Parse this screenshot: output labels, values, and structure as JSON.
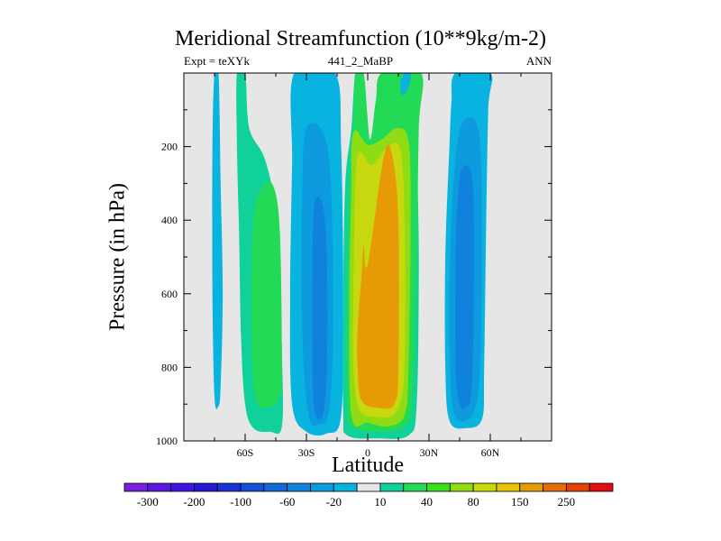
{
  "title": "Meridional Streamfunction (10**9kg/m-2)",
  "left_string": "Expt = teXYk",
  "center_string": "441_2_MaBP",
  "right_string": "ANN",
  "chart_data": {
    "type": "heatmap",
    "subtype": "filled-contour",
    "xlabel": "Latitude",
    "ylabel": "Pressure (in hPa)",
    "xlim": [
      -90,
      90
    ],
    "ylim": [
      1000,
      0
    ],
    "y_reversed": true,
    "x_ticks": [
      {
        "value": -60,
        "label": "60S"
      },
      {
        "value": -30,
        "label": "30S"
      },
      {
        "value": 0,
        "label": "0"
      },
      {
        "value": 30,
        "label": "30N"
      },
      {
        "value": 60,
        "label": "60N"
      }
    ],
    "y_ticks": [
      {
        "value": 200,
        "label": "200"
      },
      {
        "value": 400,
        "label": "400"
      },
      {
        "value": 600,
        "label": "600"
      },
      {
        "value": 800,
        "label": "800"
      },
      {
        "value": 1000,
        "label": "1000"
      }
    ],
    "background_color": "#e6e6e6",
    "contour_levels": [
      -300,
      -250,
      -200,
      -150,
      -100,
      -80,
      -60,
      -40,
      -20,
      -10,
      10,
      20,
      40,
      60,
      80,
      100,
      150,
      200,
      250,
      300
    ],
    "colorbar": {
      "colors": [
        "#7a1fdf",
        "#5c19e0",
        "#3d16e1",
        "#2618d3",
        "#1a33d4",
        "#1650d6",
        "#1369d9",
        "#0f82dc",
        "#0e9ade",
        "#09b3df",
        "#e6e6e6",
        "#11d19b",
        "#22da55",
        "#37e01b",
        "#8fdc14",
        "#c8d80e",
        "#e8c408",
        "#e59a06",
        "#e46d05",
        "#e24304",
        "#e00f0f"
      ],
      "labels": [
        {
          "after_box": 1,
          "text": "-300"
        },
        {
          "after_box": 3,
          "text": "-200"
        },
        {
          "after_box": 5,
          "text": "-100"
        },
        {
          "after_box": 7,
          "text": "-60"
        },
        {
          "after_box": 9,
          "text": "-20"
        },
        {
          "after_box": 11,
          "text": "10"
        },
        {
          "after_box": 13,
          "text": "40"
        },
        {
          "after_box": 15,
          "text": "80"
        },
        {
          "after_box": 17,
          "text": "150"
        },
        {
          "after_box": 19,
          "text": "250"
        }
      ]
    },
    "regions": [
      {
        "name": "cell-70s",
        "level": -10,
        "color": "#09b3df",
        "polygon": [
          [
            -75,
            0
          ],
          [
            -73,
            0
          ],
          [
            -72,
            300
          ],
          [
            -71,
            600
          ],
          [
            -72,
            850
          ],
          [
            -73,
            905
          ],
          [
            -75,
            880
          ],
          [
            -76,
            600
          ],
          [
            -76,
            200
          ]
        ]
      },
      {
        "name": "cell-55s",
        "level": 10,
        "color": "#11d19b",
        "polygon": [
          [
            -64,
            0
          ],
          [
            -60,
            0
          ],
          [
            -58,
            150
          ],
          [
            -50,
            240
          ],
          [
            -44,
            420
          ],
          [
            -42,
            760
          ],
          [
            -42,
            960
          ],
          [
            -48,
            975
          ],
          [
            -56,
            965
          ],
          [
            -60,
            900
          ],
          [
            -62,
            720
          ],
          [
            -63,
            430
          ],
          [
            -64,
            200
          ]
        ]
      },
      {
        "name": "cell-55s-core",
        "level": 20,
        "color": "#22da55",
        "polygon": [
          [
            -51,
            305
          ],
          [
            -46,
            310
          ],
          [
            -43,
            430
          ],
          [
            -42,
            760
          ],
          [
            -43,
            880
          ],
          [
            -50,
            910
          ],
          [
            -55,
            880
          ],
          [
            -57,
            700
          ],
          [
            -56,
            400
          ]
        ]
      },
      {
        "name": "cell-30s",
        "level": -10,
        "color": "#09b3df",
        "polygon": [
          [
            -36,
            0
          ],
          [
            -16,
            0
          ],
          [
            -13,
            200
          ],
          [
            -12,
            600
          ],
          [
            -13,
            930
          ],
          [
            -20,
            980
          ],
          [
            -30,
            975
          ],
          [
            -37,
            900
          ],
          [
            -38,
            600
          ],
          [
            -37,
            250
          ]
        ]
      },
      {
        "name": "cell-30s-l2",
        "level": -20,
        "color": "#0e9ade",
        "polygon": [
          [
            -30,
            150
          ],
          [
            -22,
            160
          ],
          [
            -18,
            300
          ],
          [
            -17,
            700
          ],
          [
            -19,
            920
          ],
          [
            -24,
            955
          ],
          [
            -29,
            930
          ],
          [
            -32,
            700
          ],
          [
            -32,
            300
          ]
        ]
      },
      {
        "name": "cell-30s-l3",
        "level": -40,
        "color": "#0f82dc",
        "polygon": [
          [
            -26,
            350
          ],
          [
            -22,
            360
          ],
          [
            -20,
            500
          ],
          [
            -20,
            800
          ],
          [
            -22,
            930
          ],
          [
            -26,
            920
          ],
          [
            -27,
            800
          ],
          [
            -27,
            500
          ]
        ]
      },
      {
        "name": "cell-eq",
        "level": 10,
        "color": "#11d19b",
        "polygon": [
          [
            -6,
            0
          ],
          [
            -2,
            0
          ],
          [
            1,
            180
          ],
          [
            4,
            75
          ],
          [
            7,
            0
          ],
          [
            26,
            0
          ],
          [
            24,
            120
          ],
          [
            25,
            500
          ],
          [
            24,
            900
          ],
          [
            20,
            985
          ],
          [
            5,
            993
          ],
          [
            -10,
            985
          ],
          [
            -12,
            920
          ],
          [
            -12,
            600
          ],
          [
            -11,
            300
          ],
          [
            -8,
            150
          ]
        ]
      },
      {
        "name": "cell-eq-l2",
        "level": 20,
        "color": "#22da55",
        "polygon": [
          [
            -6,
            0
          ],
          [
            -2,
            0
          ],
          [
            1,
            180
          ],
          [
            4,
            75
          ],
          [
            7,
            0
          ],
          [
            26,
            0
          ],
          [
            25,
            150
          ],
          [
            24,
            500
          ],
          [
            22,
            880
          ],
          [
            18,
            960
          ],
          [
            5,
            975
          ],
          [
            -8,
            960
          ],
          [
            -10,
            900
          ],
          [
            -10,
            600
          ],
          [
            -9,
            300
          ],
          [
            -7,
            150
          ]
        ]
      },
      {
        "name": "cell-eq-l3",
        "level": 40,
        "color": "#8fdc14",
        "polygon": [
          [
            -6,
            155
          ],
          [
            0,
            195
          ],
          [
            7,
            180
          ],
          [
            14,
            150
          ],
          [
            20,
            185
          ],
          [
            21,
            400
          ],
          [
            20,
            800
          ],
          [
            18,
            930
          ],
          [
            10,
            960
          ],
          [
            0,
            950
          ],
          [
            -8,
            930
          ],
          [
            -9,
            600
          ],
          [
            -8,
            300
          ],
          [
            -8,
            200
          ]
        ]
      },
      {
        "name": "cell-eq-l4",
        "level": 60,
        "color": "#c8d80e",
        "polygon": [
          [
            -4,
            215
          ],
          [
            2,
            250
          ],
          [
            10,
            200
          ],
          [
            16,
            210
          ],
          [
            18,
            400
          ],
          [
            18,
            800
          ],
          [
            14,
            920
          ],
          [
            5,
            935
          ],
          [
            -4,
            915
          ],
          [
            -7,
            800
          ],
          [
            -7,
            600
          ],
          [
            -6,
            300
          ]
        ]
      },
      {
        "name": "cell-eq-l5",
        "level": 80,
        "color": "#e59a06",
        "polygon": [
          [
            -2,
            470
          ],
          [
            0,
            520
          ],
          [
            8,
            225
          ],
          [
            12,
            225
          ],
          [
            15,
            400
          ],
          [
            15,
            800
          ],
          [
            13,
            900
          ],
          [
            5,
            910
          ],
          [
            -3,
            890
          ],
          [
            -5,
            800
          ],
          [
            -5,
            700
          ],
          [
            -3,
            550
          ]
        ]
      },
      {
        "name": "cell-45n",
        "level": -10,
        "color": "#09b3df",
        "polygon": [
          [
            43,
            0
          ],
          [
            60,
            0
          ],
          [
            59,
            100
          ],
          [
            58,
            400
          ],
          [
            57,
            800
          ],
          [
            56,
            940
          ],
          [
            48,
            965
          ],
          [
            40,
            945
          ],
          [
            38,
            800
          ],
          [
            38,
            500
          ],
          [
            40,
            200
          ],
          [
            41,
            80
          ]
        ]
      },
      {
        "name": "cell-45n-l2",
        "level": -20,
        "color": "#0e9ade",
        "polygon": [
          [
            46,
            140
          ],
          [
            54,
            150
          ],
          [
            56,
            400
          ],
          [
            55,
            800
          ],
          [
            52,
            920
          ],
          [
            45,
            945
          ],
          [
            41,
            880
          ],
          [
            40,
            600
          ],
          [
            42,
            300
          ]
        ]
      },
      {
        "name": "cell-45n-l3",
        "level": -40,
        "color": "#0f82dc",
        "polygon": [
          [
            46,
            260
          ],
          [
            51,
            280
          ],
          [
            52,
            500
          ],
          [
            51,
            850
          ],
          [
            48,
            910
          ],
          [
            45,
            900
          ],
          [
            43,
            800
          ],
          [
            43,
            500
          ],
          [
            44,
            350
          ]
        ]
      },
      {
        "name": "cell-20n-top",
        "level": -10,
        "color": "#09b3df",
        "polygon": [
          [
            18,
            0
          ],
          [
            21,
            0
          ],
          [
            20,
            40
          ],
          [
            17,
            60
          ],
          [
            16,
            30
          ]
        ]
      }
    ]
  }
}
